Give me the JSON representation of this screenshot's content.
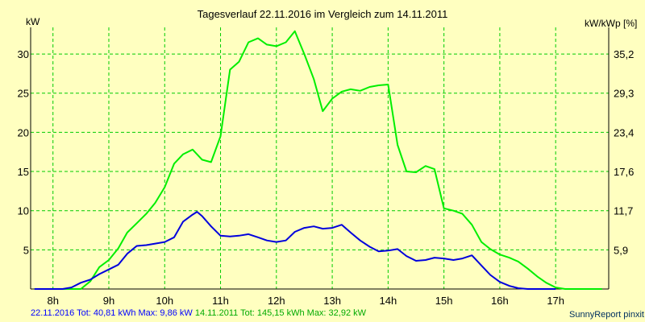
{
  "colors": {
    "background": "#ffffc0",
    "grid": "#00cc00",
    "series_2016": "#0000dd",
    "series_2011": "#00ee00"
  },
  "chart_data": {
    "type": "line",
    "title": "Tagesverlauf 22.11.2016 im Vergleich zum 14.11.2011",
    "ylabel": "kW",
    "ylabel_right": "kW/kWp [%]",
    "xlim": [
      7.6,
      17.95
    ],
    "ylim": [
      0,
      33.4
    ],
    "x_ticks": [
      8,
      9,
      10,
      11,
      12,
      13,
      14,
      15,
      16,
      17
    ],
    "x_tick_labels": [
      "8h",
      "9h",
      "10h",
      "11h",
      "12h",
      "13h",
      "14h",
      "15h",
      "16h",
      "17h"
    ],
    "y_ticks": [
      5,
      10,
      15,
      20,
      25,
      30
    ],
    "y_tick_labels": [
      "5",
      "10",
      "15",
      "20",
      "25",
      "30"
    ],
    "y2_ticks": [
      5,
      10,
      15,
      20,
      25,
      30
    ],
    "y2_tick_labels": [
      "5,9",
      "11,7",
      "17,6",
      "23,4",
      "29,3",
      "35,2"
    ],
    "grid": true,
    "series": [
      {
        "name": "22.11.2016",
        "x": [
          7.67,
          8.17,
          8.33,
          8.5,
          8.67,
          8.83,
          9.0,
          9.17,
          9.33,
          9.5,
          9.67,
          9.83,
          10.0,
          10.17,
          10.33,
          10.5,
          10.58,
          10.67,
          10.83,
          11.0,
          11.17,
          11.33,
          11.5,
          11.67,
          11.83,
          12.0,
          12.17,
          12.33,
          12.5,
          12.67,
          12.83,
          13.0,
          13.17,
          13.33,
          13.5,
          13.67,
          13.83,
          14.0,
          14.17,
          14.33,
          14.5,
          14.67,
          14.83,
          15.0,
          15.17,
          15.33,
          15.5,
          15.67,
          15.83,
          16.0,
          16.17,
          16.33,
          16.5,
          16.67,
          16.83,
          17.0
        ],
        "y": [
          0,
          0,
          0.2,
          0.8,
          1.2,
          1.9,
          2.5,
          3.1,
          4.5,
          5.5,
          5.6,
          5.8,
          6.0,
          6.6,
          8.6,
          9.5,
          9.86,
          9.3,
          8.0,
          6.8,
          6.7,
          6.8,
          7.0,
          6.6,
          6.2,
          6.0,
          6.2,
          7.3,
          7.8,
          8.0,
          7.7,
          7.8,
          8.2,
          7.2,
          6.2,
          5.4,
          4.8,
          4.9,
          5.1,
          4.2,
          3.6,
          3.7,
          4.0,
          3.9,
          3.7,
          3.9,
          4.3,
          3.0,
          1.8,
          0.9,
          0.4,
          0.1,
          0,
          0,
          0,
          0
        ]
      },
      {
        "name": "14.11.2011",
        "x": [
          7.67,
          8.17,
          8.33,
          8.5,
          8.67,
          8.83,
          9.0,
          9.17,
          9.33,
          9.5,
          9.67,
          9.83,
          10.0,
          10.17,
          10.33,
          10.5,
          10.67,
          10.83,
          11.0,
          11.17,
          11.33,
          11.5,
          11.67,
          11.83,
          12.0,
          12.17,
          12.33,
          12.5,
          12.67,
          12.83,
          13.0,
          13.17,
          13.33,
          13.5,
          13.67,
          13.83,
          14.0,
          14.17,
          14.33,
          14.5,
          14.67,
          14.83,
          15.0,
          15.17,
          15.33,
          15.5,
          15.67,
          15.83,
          16.0,
          16.17,
          16.33,
          16.5,
          16.67,
          16.83,
          17.0,
          17.17,
          17.33,
          17.5,
          17.67,
          17.83
        ],
        "y": [
          0,
          0,
          0,
          0,
          1.0,
          2.8,
          3.7,
          5.2,
          7.2,
          8.4,
          9.6,
          11.0,
          13.0,
          16.0,
          17.2,
          17.8,
          16.5,
          16.2,
          19.5,
          28.0,
          29.0,
          31.5,
          32.0,
          31.2,
          31.0,
          31.5,
          32.92,
          30.0,
          26.8,
          22.7,
          24.3,
          25.2,
          25.5,
          25.3,
          25.8,
          26.0,
          26.1,
          18.4,
          15.0,
          14.9,
          15.7,
          15.3,
          10.3,
          10.0,
          9.6,
          8.2,
          6.0,
          5.1,
          4.4,
          4.0,
          3.5,
          2.6,
          1.6,
          0.8,
          0.2,
          0,
          0,
          0,
          0,
          0
        ]
      }
    ]
  },
  "footer": {
    "line1": "22.11.2016 Tot: 40,81 kWh Max: 9,86 kW",
    "line2": "14.11.2011 Tot: 145,15 kWh Max: 32,92 kW",
    "credit": "SunnyReport pinxit"
  }
}
